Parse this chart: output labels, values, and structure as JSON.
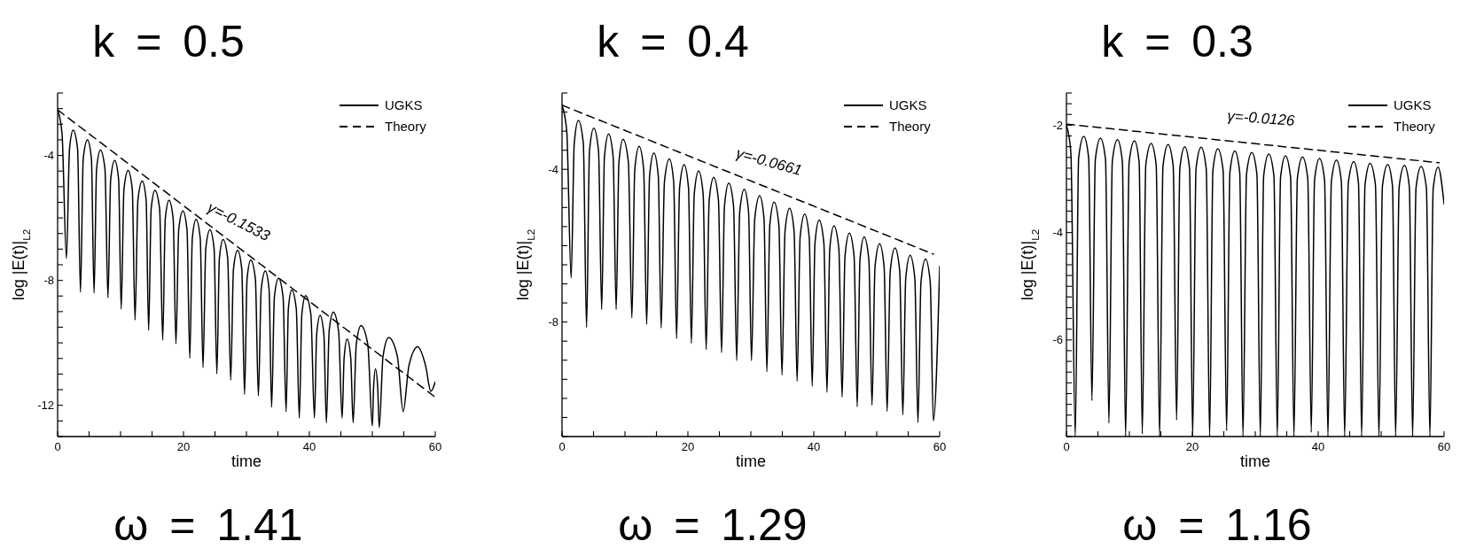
{
  "chart_data": [
    {
      "type": "line",
      "title": "k = 0.5",
      "xlabel": "time",
      "ylabel": "log |E(t)|$_{L2}$",
      "annotations": [
        {
          "text": "γ=-0.1533",
          "x": 28.8,
          "y": -6.96
        },
        "ω = 1.41"
      ],
      "xlim": [
        0,
        60
      ],
      "ylim": [
        -13,
        -2
      ],
      "xticks": [
        0,
        {
          "value": 5,
          "label": null
        },
        {
          "value": 10,
          "label": null
        },
        {
          "value": 15,
          "label": null
        },
        20,
        {
          "value": 25,
          "label": null
        },
        {
          "value": 30,
          "label": null
        },
        {
          "value": 35,
          "label": null
        },
        40,
        {
          "value": 45,
          "label": null
        },
        {
          "value": 50,
          "label": null
        },
        {
          "value": 55,
          "label": null
        },
        60
      ],
      "yticks": [
        {
          "value": -13,
          "label": null
        },
        {
          "value": -12.5,
          "label": null
        },
        -12,
        {
          "value": -11.5,
          "label": null
        },
        {
          "value": -11,
          "label": null
        },
        {
          "value": -10.5,
          "label": null
        },
        {
          "value": -10,
          "label": null
        },
        {
          "value": -9.5,
          "label": null
        },
        {
          "value": -9,
          "label": null
        },
        {
          "value": -8.5,
          "label": null
        },
        -8,
        {
          "value": -7.5,
          "label": null
        },
        {
          "value": -7,
          "label": null
        },
        {
          "value": -6.5,
          "label": null
        },
        {
          "value": -6,
          "label": null
        },
        {
          "value": -5.5,
          "label": null
        },
        {
          "value": -5,
          "label": null
        },
        {
          "value": -4.5,
          "label": null
        },
        -4,
        {
          "value": -3.5,
          "label": null
        },
        {
          "value": -3,
          "label": null
        },
        {
          "value": -2.5,
          "label": null
        },
        {
          "value": -2,
          "label": null
        }
      ],
      "legend": "top right",
      "series": [
        {
          "name": "UGKS",
          "color": "#000000",
          "line_style": "solid",
          "x": [
            0,
            0.7,
            1.4,
            1.89,
            2.47,
            3.17,
            3.63,
            4.07,
            4.74,
            5.37,
            5.79,
            6.19,
            6.8,
            7.52,
            8.0,
            8.43,
            9.07,
            9.69,
            10.1,
            10.54,
            11.2,
            11.86,
            12.3,
            12.76,
            13.45,
            14.06,
            14.46,
            14.86,
            15.47,
            16.21,
            16.7,
            17.1,
            17.7,
            18.36,
            18.8,
            19.24,
            19.9,
            20.56,
            21.0,
            21.4,
            22.0,
            22.66,
            23.1,
            23.54,
            24.2,
            24.86,
            25.3,
            25.7,
            26.3,
            27.02,
            27.5,
            27.94,
            28.6,
            29.26,
            29.7,
            30.1,
            30.7,
            31.42,
            31.9,
            32.34,
            33.0,
            33.6,
            34.0,
            34.44,
            35.1,
            35.82,
            36.3,
            36.66,
            37.2,
            37.92,
            38.4,
            38.8,
            39.4,
            40.24,
            40.8,
            41.16,
            41.7,
            42.3,
            42.7,
            43.14,
            43.8,
            44.64,
            45.2,
            45.52,
            46.0,
            46.57,
            46.95,
            47.45,
            48.2,
            49.28,
            50.0,
            50.2,
            50.5,
            50.86,
            51.1,
            51.7,
            52.6,
            53.98,
            54.9,
            55.82,
            57.2,
            58.46,
            59.3,
            60
          ],
          "values": [
            -2.54,
            -3.3,
            -7.3,
            -3.79,
            -3.19,
            -3.79,
            -8.38,
            -4.1,
            -3.5,
            -4.1,
            -8.41,
            -4.43,
            -3.83,
            -4.43,
            -8.56,
            -4.76,
            -4.16,
            -4.76,
            -8.92,
            -5.08,
            -4.48,
            -5.08,
            -9.27,
            -5.42,
            -4.82,
            -5.42,
            -9.6,
            -5.72,
            -5.12,
            -5.72,
            -9.91,
            -6.04,
            -5.44,
            -6.04,
            -10.03,
            -6.38,
            -5.78,
            -6.38,
            -10.49,
            -6.65,
            -6.05,
            -6.65,
            -10.79,
            -6.98,
            -6.38,
            -6.98,
            -10.99,
            -7.29,
            -6.69,
            -7.29,
            -11.19,
            -7.64,
            -7.04,
            -7.64,
            -11.65,
            -7.95,
            -7.35,
            -7.95,
            -11.7,
            -8.3,
            -7.7,
            -8.3,
            -12.06,
            -8.53,
            -7.93,
            -8.53,
            -12.2,
            -8.91,
            -8.31,
            -8.91,
            -12.41,
            -9.09,
            -8.49,
            -9.09,
            -12.41,
            -9.72,
            -9.12,
            -9.72,
            -12.56,
            -9.62,
            -9.02,
            -9.62,
            -12.41,
            -10.48,
            -9.88,
            -10.48,
            -12.56,
            -10.05,
            -9.45,
            -10.05,
            -12.66,
            -11.44,
            -10.84,
            -11.44,
            -12.71,
            -10.43,
            -9.83,
            -10.43,
            -12.2,
            -10.73,
            -10.13,
            -10.73,
            -11.55,
            -11.25
          ]
        },
        {
          "name": "Theory",
          "color": "#000000",
          "line_style": "dashed",
          "x": [
            0,
            59.8
          ],
          "values": [
            -2.54,
            -11.71
          ]
        }
      ]
    },
    {
      "type": "line",
      "title": "k = 0.4",
      "xlabel": "time",
      "ylabel": "log |E(t)|$_{L2}$",
      "annotations": [
        {
          "text": "γ=-0.0661",
          "x": 32.9,
          "y": -4.49
        },
        "ω = 1.29"
      ],
      "xlim": [
        0,
        60
      ],
      "ylim": [
        -11,
        -2
      ],
      "xticks": [
        0,
        {
          "value": 5,
          "label": null
        },
        {
          "value": 10,
          "label": null
        },
        {
          "value": 15,
          "label": null
        },
        20,
        {
          "value": 25,
          "label": null
        },
        {
          "value": 30,
          "label": null
        },
        {
          "value": 35,
          "label": null
        },
        40,
        {
          "value": 45,
          "label": null
        },
        {
          "value": 50,
          "label": null
        },
        {
          "value": 55,
          "label": null
        },
        60
      ],
      "yticks": [
        {
          "value": -11,
          "label": null
        },
        {
          "value": -10.5,
          "label": null
        },
        {
          "value": -10,
          "label": null
        },
        {
          "value": -9.5,
          "label": null
        },
        {
          "value": -9,
          "label": null
        },
        {
          "value": -8.5,
          "label": null
        },
        -8,
        {
          "value": -7.5,
          "label": null
        },
        {
          "value": -7,
          "label": null
        },
        {
          "value": -6.5,
          "label": null
        },
        {
          "value": -6,
          "label": null
        },
        {
          "value": -5.5,
          "label": null
        },
        {
          "value": -5,
          "label": null
        },
        {
          "value": -4.5,
          "label": null
        },
        -4,
        {
          "value": -3.5,
          "label": null
        },
        {
          "value": -3,
          "label": null
        },
        {
          "value": -2.5,
          "label": null
        },
        {
          "value": -2,
          "label": null
        }
      ],
      "legend": "top right",
      "series": [
        {
          "name": "UGKS",
          "color": "#000000",
          "line_style": "solid",
          "x": [
            0,
            0.75,
            1.45,
            1.94,
            2.6,
            3.38,
            3.9,
            4.36,
            5.05,
            5.8,
            6.3,
            6.74,
            7.4,
            8.12,
            8.6,
            9.04,
            9.7,
            10.54,
            11.1,
            11.56,
            12.25,
            12.97,
            13.45,
            13.91,
            14.6,
            15.29,
            15.75,
            16.27,
            17.05,
            17.74,
            18.2,
            18.68,
            19.4,
            20.09,
            20.55,
            21.01,
            21.7,
            22.42,
            22.9,
            23.38,
            24.1,
            24.85,
            25.35,
            25.81,
            26.5,
            27.25,
            27.75,
            28.23,
            28.95,
            29.64,
            30.1,
            30.62,
            31.4,
            32.09,
            32.55,
            33.01,
            33.7,
            34.45,
            34.95,
            35.43,
            36.15,
            36.87,
            37.35,
            37.83,
            38.55,
            39.27,
            39.75,
            40.19,
            40.85,
            41.6,
            42.1,
            42.54,
            43.2,
            43.98,
            44.5,
            44.96,
            45.65,
            46.4,
            46.9,
            47.34,
            48.0,
            48.75,
            49.25,
            49.73,
            50.45,
            51.17,
            51.65,
            52.15,
            52.9,
            53.65,
            54.15,
            54.61,
            55.3,
            56.05,
            56.55,
            57.03,
            57.75,
            58.5,
            59.0,
            60
          ],
          "values": [
            -2.32,
            -3.0,
            -6.85,
            -3.32,
            -2.72,
            -3.32,
            -8.14,
            -3.52,
            -2.92,
            -3.52,
            -7.67,
            -3.67,
            -3.07,
            -3.67,
            -7.67,
            -3.81,
            -3.21,
            -3.81,
            -7.89,
            -4.0,
            -3.4,
            -4.0,
            -8.06,
            -4.17,
            -3.57,
            -4.17,
            -8.16,
            -4.33,
            -3.73,
            -4.33,
            -8.43,
            -4.48,
            -3.88,
            -4.48,
            -8.56,
            -4.64,
            -4.04,
            -4.64,
            -8.72,
            -4.81,
            -4.21,
            -4.81,
            -8.8,
            -4.96,
            -4.36,
            -4.96,
            -9.01,
            -5.12,
            -4.52,
            -5.12,
            -9.01,
            -5.29,
            -4.69,
            -5.29,
            -9.3,
            -5.46,
            -4.86,
            -5.46,
            -9.39,
            -5.62,
            -5.02,
            -5.62,
            -9.55,
            -5.77,
            -5.17,
            -5.77,
            -9.68,
            -5.93,
            -5.33,
            -5.93,
            -9.84,
            -6.08,
            -5.48,
            -6.08,
            -9.97,
            -6.27,
            -5.67,
            -6.27,
            -10.22,
            -6.37,
            -5.77,
            -6.37,
            -10.18,
            -6.55,
            -5.95,
            -6.55,
            -10.34,
            -6.66,
            -6.06,
            -6.66,
            -10.43,
            -6.85,
            -6.25,
            -6.85,
            -10.63,
            -6.95,
            -6.35,
            -6.95,
            -10.59,
            -6.54
          ]
        },
        {
          "name": "Theory",
          "color": "#000000",
          "line_style": "dashed",
          "x": [
            0,
            59
          ],
          "values": [
            -2.32,
            -6.22
          ]
        }
      ]
    },
    {
      "type": "line",
      "title": "k = 0.3",
      "xlabel": "time",
      "ylabel": "log |E(t)|$_{L2}$",
      "annotations": [
        {
          "text": "γ=-0.0126",
          "x": 30.9,
          "y": -2.36
        },
        "ω = 1.16"
      ],
      "xlim": [
        0,
        60
      ],
      "ylim": [
        -7.8,
        -1.4
      ],
      "xticks": [
        0,
        {
          "value": 5,
          "label": null
        },
        {
          "value": 10,
          "label": null
        },
        {
          "value": 15,
          "label": null
        },
        20,
        {
          "value": 25,
          "label": null
        },
        {
          "value": 30,
          "label": null
        },
        {
          "value": 35,
          "label": null
        },
        40,
        {
          "value": 45,
          "label": null
        },
        {
          "value": 50,
          "label": null
        },
        {
          "value": 55,
          "label": null
        },
        60
      ],
      "yticks": [
        {
          "value": -7.8,
          "label": null
        },
        {
          "value": -7.6,
          "label": null
        },
        {
          "value": -7.4,
          "label": null
        },
        {
          "value": -7.2,
          "label": null
        },
        {
          "value": -7,
          "label": null
        },
        {
          "value": -6.8,
          "label": null
        },
        {
          "value": -6.6,
          "label": null
        },
        {
          "value": -6.4,
          "label": null
        },
        {
          "value": -6.2,
          "label": null
        },
        -6,
        {
          "value": -5.8,
          "label": null
        },
        {
          "value": -5.6,
          "label": null
        },
        {
          "value": -5.4,
          "label": null
        },
        {
          "value": -5.2,
          "label": null
        },
        {
          "value": -5,
          "label": null
        },
        {
          "value": -4.8,
          "label": null
        },
        {
          "value": -4.6,
          "label": null
        },
        {
          "value": -4.4,
          "label": null
        },
        {
          "value": -4.2,
          "label": null
        },
        -4,
        {
          "value": -3.8,
          "label": null
        },
        {
          "value": -3.6,
          "label": null
        },
        {
          "value": -3.4,
          "label": null
        },
        {
          "value": -3.2,
          "label": null
        },
        {
          "value": -3,
          "label": null
        },
        {
          "value": -2.8,
          "label": null
        },
        {
          "value": -2.6,
          "label": null
        },
        {
          "value": -2.4,
          "label": null
        },
        {
          "value": -2.2,
          "label": null
        },
        -2,
        {
          "value": -1.8,
          "label": null
        },
        {
          "value": -1.6,
          "label": null
        },
        {
          "value": -1.4,
          "label": null
        }
      ],
      "legend": "top right",
      "series": [
        {
          "name": "UGKS",
          "color": "#000000",
          "line_style": "solid",
          "x": [
            0,
            0.7,
            1.4,
            1.94,
            2.75,
            3.53,
            4.05,
            4.59,
            5.4,
            6.21,
            6.75,
            7.29,
            8.1,
            8.88,
            9.4,
            9.96,
            10.8,
            11.55,
            12.05,
            12.61,
            13.45,
            14.26,
            14.8,
            15.34,
            16.15,
            16.96,
            17.5,
            18.02,
            18.8,
            19.55,
            20.05,
            20.59,
            21.4,
            22.21,
            22.75,
            23.27,
            24.05,
            24.89,
            25.45,
            25.97,
            26.75,
            27.53,
            28.05,
            28.61,
            29.45,
            30.26,
            30.8,
            31.34,
            32.15,
            32.96,
            33.5,
            34.02,
            34.8,
            35.61,
            36.15,
            36.69,
            37.5,
            38.34,
            38.9,
            39.42,
            40.2,
            41.01,
            41.55,
            42.09,
            42.9,
            43.68,
            44.2,
            44.78,
            45.65,
            46.4,
            46.9,
            47.44,
            48.25,
            49.09,
            49.65,
            50.21,
            51.05,
            51.8,
            52.3,
            52.86,
            53.7,
            54.48,
            55.0,
            55.54,
            56.35,
            57.19,
            57.75,
            58.27,
            59.05,
            60
          ],
          "values": [
            -2.0,
            -2.5,
            -7.8,
            -2.61,
            -2.21,
            -2.61,
            -7.13,
            -2.64,
            -2.24,
            -2.64,
            -7.55,
            -2.67,
            -2.27,
            -2.67,
            -7.8,
            -2.69,
            -2.29,
            -2.69,
            -7.75,
            -2.74,
            -2.34,
            -2.74,
            -7.8,
            -2.76,
            -2.36,
            -2.76,
            -7.49,
            -2.8,
            -2.4,
            -2.8,
            -7.8,
            -2.81,
            -2.41,
            -2.81,
            -7.8,
            -2.84,
            -2.44,
            -2.84,
            -7.69,
            -2.88,
            -2.48,
            -2.88,
            -7.8,
            -2.91,
            -2.51,
            -2.91,
            -7.8,
            -2.94,
            -2.54,
            -2.94,
            -7.8,
            -2.97,
            -2.57,
            -2.97,
            -7.8,
            -2.99,
            -2.59,
            -2.99,
            -7.72,
            -3.02,
            -2.62,
            -3.02,
            -7.8,
            -3.05,
            -2.65,
            -3.05,
            -7.8,
            -3.08,
            -2.68,
            -3.08,
            -7.8,
            -3.11,
            -2.71,
            -3.11,
            -7.8,
            -3.13,
            -2.73,
            -3.13,
            -7.8,
            -3.15,
            -2.75,
            -3.15,
            -7.8,
            -3.17,
            -2.77,
            -3.17,
            -7.8,
            -3.18,
            -2.78,
            -3.47
          ]
        },
        {
          "name": "Theory",
          "color": "#000000",
          "line_style": "dashed",
          "x": [
            0,
            59.2
          ],
          "values": [
            -1.98,
            -2.7
          ]
        }
      ]
    }
  ]
}
